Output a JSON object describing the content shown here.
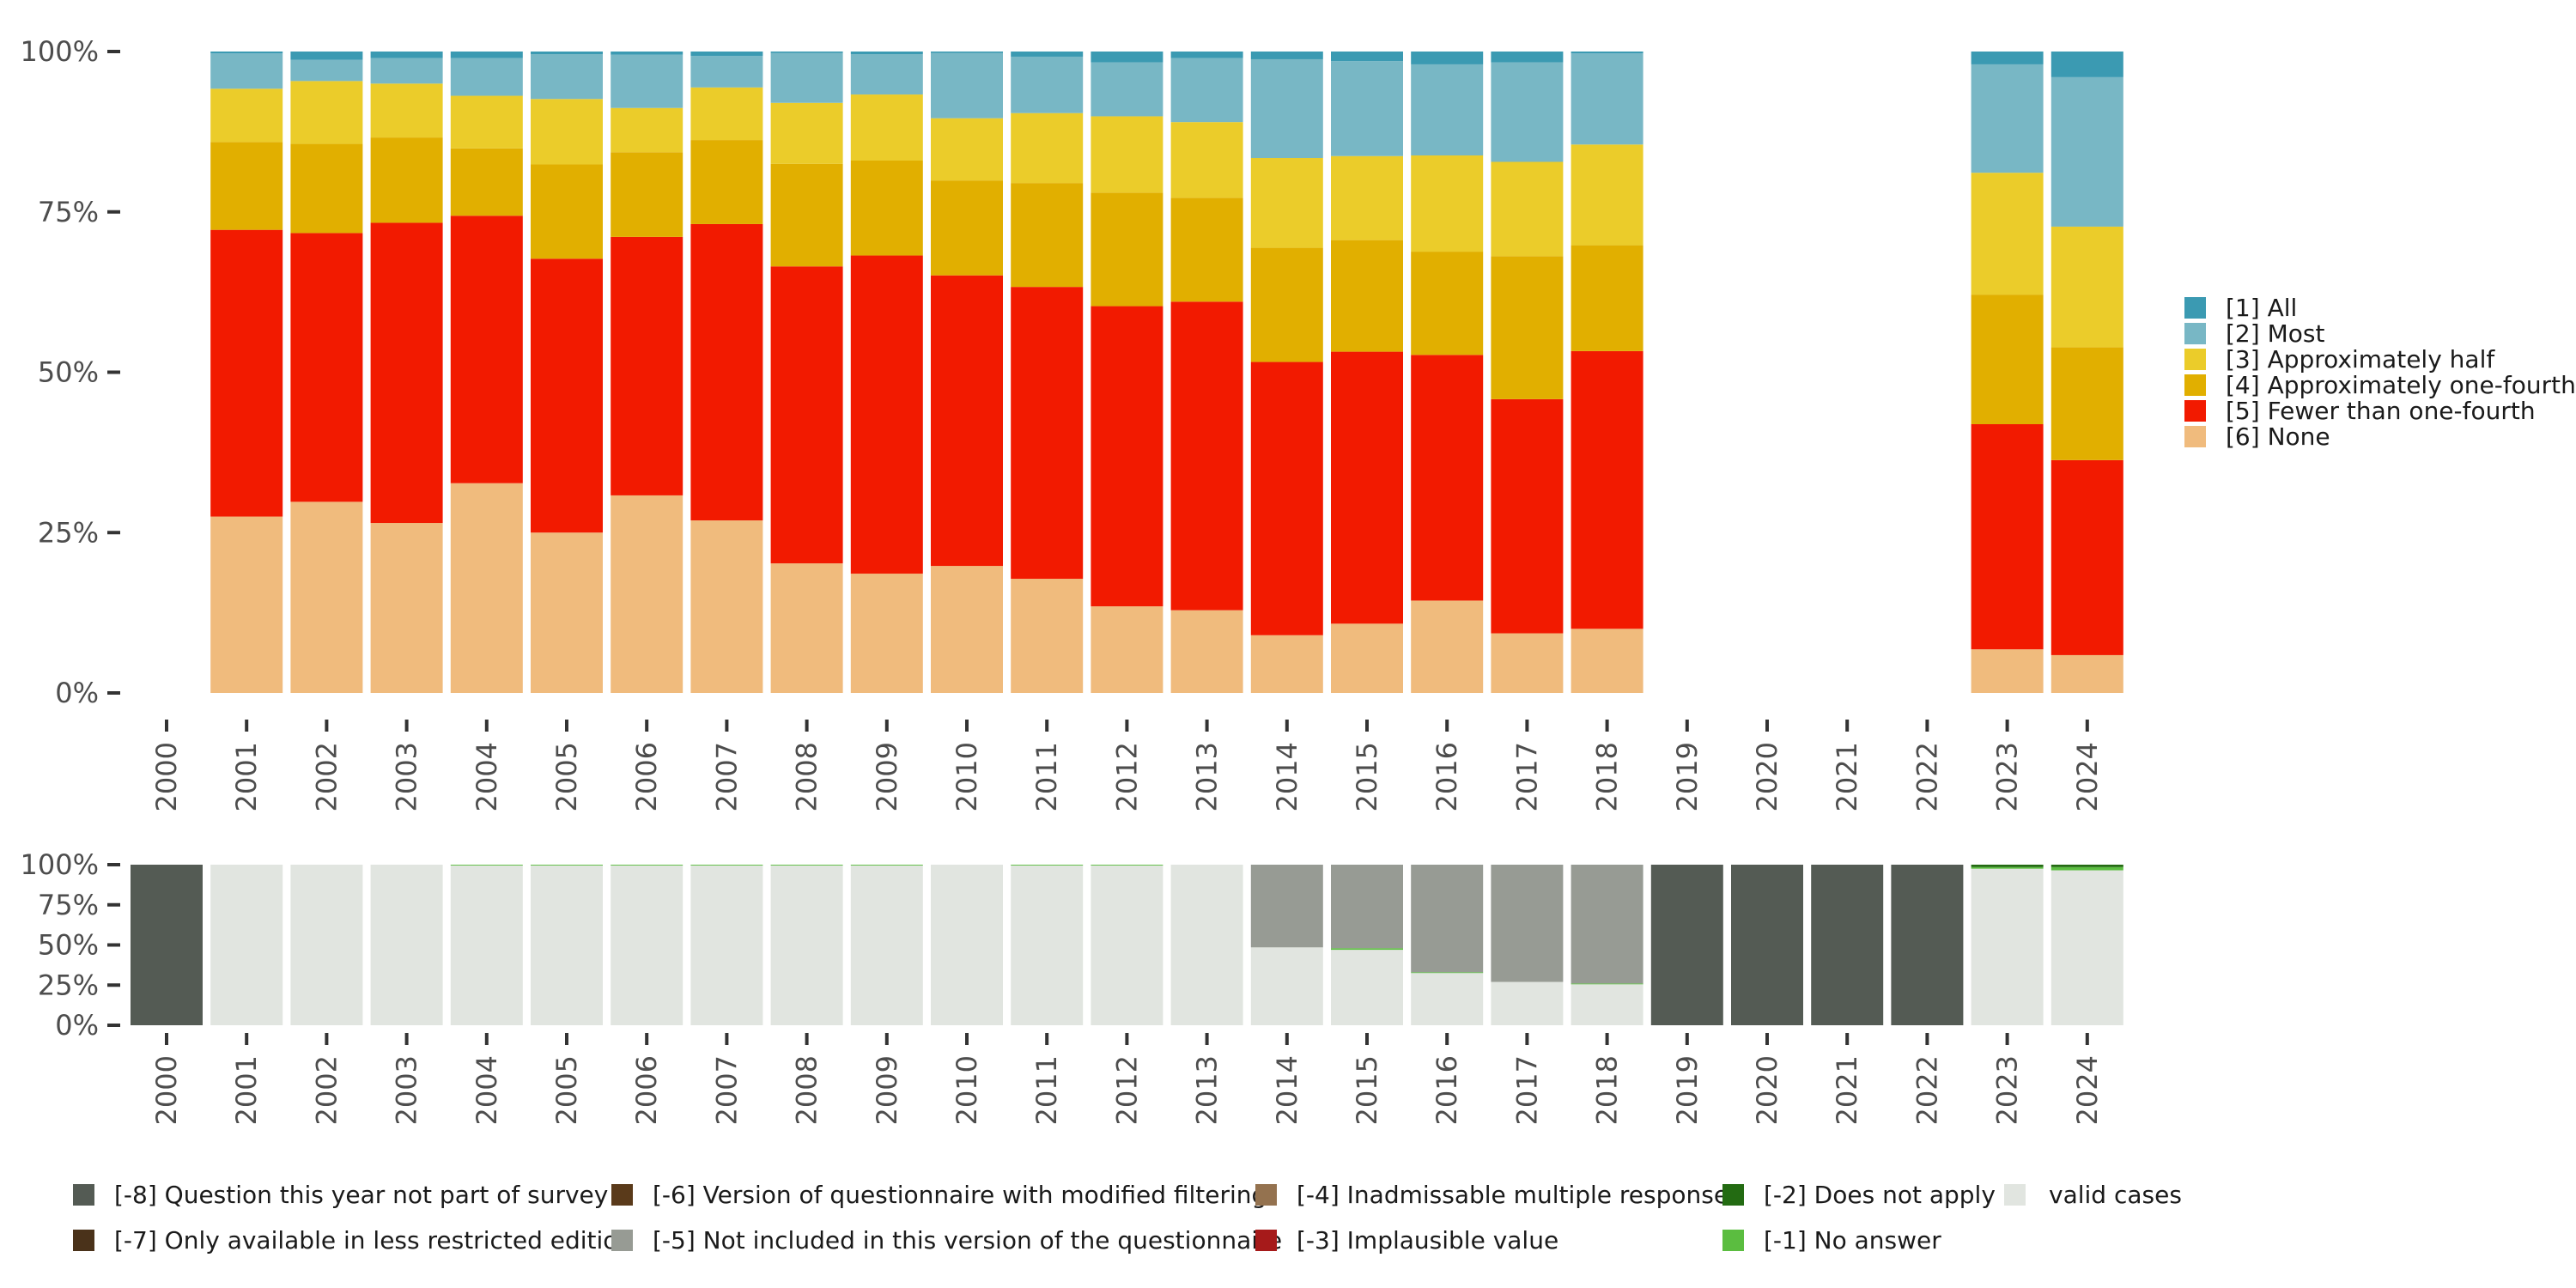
{
  "chart_data": [
    {
      "type": "bar",
      "stacked": true,
      "orientation": "vertical",
      "title": "",
      "xlabel": "",
      "ylabel": "",
      "ylim": [
        0,
        100
      ],
      "y_tick_labels": [
        "0%",
        "25%",
        "50%",
        "75%",
        "100%"
      ],
      "y_ticks": [
        0,
        25,
        50,
        75,
        100
      ],
      "categories": [
        "2000",
        "2001",
        "2002",
        "2003",
        "2004",
        "2005",
        "2006",
        "2007",
        "2008",
        "2009",
        "2010",
        "2011",
        "2012",
        "2013",
        "2014",
        "2015",
        "2016",
        "2017",
        "2018",
        "2019",
        "2020",
        "2021",
        "2022",
        "2023",
        "2024"
      ],
      "legend_position": "right",
      "series": [
        {
          "name": "[6] None",
          "color": "#F0BB7D",
          "values": [
            null,
            27.5,
            29.8,
            26.5,
            32.7,
            25.0,
            30.8,
            26.9,
            20.2,
            18.6,
            19.8,
            17.8,
            13.5,
            12.9,
            9.0,
            10.8,
            14.4,
            9.3,
            10.0,
            null,
            null,
            null,
            null,
            6.8,
            5.9
          ]
        },
        {
          "name": "[5] Fewer than one-fourth",
          "color": "#F21A00",
          "values": [
            null,
            44.7,
            41.9,
            46.8,
            41.7,
            42.7,
            40.3,
            46.2,
            46.3,
            49.6,
            45.3,
            45.5,
            46.8,
            48.1,
            42.6,
            42.4,
            38.3,
            36.5,
            43.3,
            null,
            null,
            null,
            null,
            35.1,
            30.4
          ]
        },
        {
          "name": "[4] Approximately one-fourth",
          "color": "#E1AF00",
          "values": [
            null,
            13.7,
            13.9,
            13.3,
            10.5,
            14.7,
            13.2,
            13.1,
            16.0,
            14.8,
            14.8,
            16.2,
            17.7,
            16.2,
            17.8,
            17.4,
            16.1,
            22.3,
            16.5,
            null,
            null,
            null,
            null,
            20.2,
            17.6
          ]
        },
        {
          "name": "[3] Approximately half",
          "color": "#EBCC2A",
          "values": [
            null,
            8.3,
            9.8,
            8.4,
            8.2,
            10.2,
            6.9,
            8.2,
            9.5,
            10.3,
            9.7,
            10.9,
            11.9,
            11.8,
            14.0,
            13.1,
            15.0,
            14.7,
            15.7,
            null,
            null,
            null,
            null,
            19.0,
            18.8
          ]
        },
        {
          "name": "[2] Most",
          "color": "#78B7C5",
          "values": [
            null,
            5.5,
            3.3,
            4.0,
            5.9,
            7.0,
            8.3,
            4.9,
            7.8,
            6.3,
            10.2,
            8.8,
            8.4,
            10.0,
            15.4,
            14.8,
            14.2,
            15.5,
            14.2,
            null,
            null,
            null,
            null,
            16.9,
            23.3
          ]
        },
        {
          "name": "[1] All",
          "color": "#3B9AB2",
          "values": [
            null,
            0.3,
            1.3,
            1.0,
            1.0,
            0.4,
            0.5,
            0.7,
            0.2,
            0.4,
            0.2,
            0.8,
            1.7,
            1.0,
            1.2,
            1.5,
            2.0,
            1.7,
            0.3,
            null,
            null,
            null,
            null,
            2.0,
            4.0
          ]
        }
      ],
      "legend": [
        {
          "label": "[1] All",
          "color": "#3B9AB2"
        },
        {
          "label": "[2] Most",
          "color": "#78B7C5"
        },
        {
          "label": "[3] Approximately half",
          "color": "#EBCC2A"
        },
        {
          "label": "[4] Approximately one-fourth",
          "color": "#E1AF00"
        },
        {
          "label": "[5] Fewer than one-fourth",
          "color": "#F21A00"
        },
        {
          "label": "[6] None",
          "color": "#F0BB7D"
        }
      ]
    },
    {
      "type": "bar",
      "stacked": true,
      "orientation": "vertical",
      "title": "",
      "xlabel": "",
      "ylabel": "",
      "ylim": [
        0,
        100
      ],
      "y_tick_labels": [
        "0%",
        "25%",
        "50%",
        "75%",
        "100%"
      ],
      "y_ticks": [
        0,
        25,
        50,
        75,
        100
      ],
      "categories": [
        "2000",
        "2001",
        "2002",
        "2003",
        "2004",
        "2005",
        "2006",
        "2007",
        "2008",
        "2009",
        "2010",
        "2011",
        "2012",
        "2013",
        "2014",
        "2015",
        "2016",
        "2017",
        "2018",
        "2019",
        "2020",
        "2021",
        "2022",
        "2023",
        "2024"
      ],
      "legend_position": "bottom",
      "series": [
        {
          "name": "valid cases",
          "color": "#E1E5E0",
          "values": [
            0,
            100,
            100,
            100,
            99.5,
            99.5,
            99.5,
            99.5,
            99.5,
            99.5,
            100,
            99.5,
            99.5,
            100,
            48.5,
            47.0,
            32.5,
            27.0,
            25.5,
            0,
            0,
            0,
            0,
            97.5,
            96.5
          ]
        },
        {
          "name": "[-1] No answer",
          "color": "#5BBD40",
          "values": [
            0,
            0,
            0,
            0,
            0.5,
            0.5,
            0.5,
            0.5,
            0.5,
            0.5,
            0,
            0.5,
            0.5,
            0,
            0,
            1.0,
            0.5,
            0,
            0.5,
            0,
            0,
            0,
            0,
            1.0,
            2.0
          ]
        },
        {
          "name": "[-2] Does not apply",
          "color": "#236B12",
          "values": [
            0,
            0,
            0,
            0,
            0,
            0,
            0,
            0,
            0,
            0,
            0,
            0,
            0,
            0,
            0,
            0,
            0,
            0,
            0,
            0,
            0,
            0,
            0,
            1.5,
            1.5
          ]
        },
        {
          "name": "[-3] Implausible value",
          "color": "#A61A1A",
          "values": [
            0,
            0,
            0,
            0,
            0,
            0,
            0,
            0,
            0,
            0,
            0,
            0,
            0,
            0,
            0,
            0,
            0,
            0,
            0,
            0,
            0,
            0,
            0,
            0,
            0
          ]
        },
        {
          "name": "[-4] Inadmissable multiple response",
          "color": "#94724F",
          "values": [
            0,
            0,
            0,
            0,
            0,
            0,
            0,
            0,
            0,
            0,
            0,
            0,
            0,
            0,
            0,
            0,
            0,
            0,
            0,
            0,
            0,
            0,
            0,
            0,
            0
          ]
        },
        {
          "name": "[-5] Not included in this version of the questionnaire",
          "color": "#979B94",
          "values": [
            0,
            0,
            0,
            0,
            0,
            0,
            0,
            0,
            0,
            0,
            0,
            0,
            0,
            0,
            51.5,
            52.0,
            67.0,
            73.0,
            74.0,
            0,
            0,
            0,
            0,
            0,
            0
          ]
        },
        {
          "name": "[-6] Version of questionnaire with modified filtering",
          "color": "#5A3A1A",
          "values": [
            0,
            0,
            0,
            0,
            0,
            0,
            0,
            0,
            0,
            0,
            0,
            0,
            0,
            0,
            0,
            0,
            0,
            0,
            0,
            0,
            0,
            0,
            0,
            0,
            0
          ]
        },
        {
          "name": "[-7] Only available in less restricted edition",
          "color": "#4A321A",
          "values": [
            0,
            0,
            0,
            0,
            0,
            0,
            0,
            0,
            0,
            0,
            0,
            0,
            0,
            0,
            0,
            0,
            0,
            0,
            0,
            0,
            0,
            0,
            0,
            0,
            0
          ]
        },
        {
          "name": "[-8] Question this year not part of survey",
          "color": "#545B54",
          "values": [
            100,
            0,
            0,
            0,
            0,
            0,
            0,
            0,
            0,
            0,
            0,
            0,
            0,
            0,
            0,
            0,
            0,
            0,
            0,
            100,
            100,
            100,
            100,
            0,
            0
          ]
        }
      ],
      "legend": [
        {
          "label": "[-8] Question this year not part of survey",
          "color": "#545B54"
        },
        {
          "label": "[-7] Only available in less restricted edition",
          "color": "#4A321A"
        },
        {
          "label": "[-6] Version of questionnaire with modified filtering",
          "color": "#5A3A1A"
        },
        {
          "label": "[-5] Not included in this version of the questionnaire",
          "color": "#979B94"
        },
        {
          "label": "[-4] Inadmissable multiple response",
          "color": "#94724F"
        },
        {
          "label": "[-3] Implausible value",
          "color": "#A61A1A"
        },
        {
          "label": "[-2] Does not apply",
          "color": "#236B12"
        },
        {
          "label": "[-1] No answer",
          "color": "#5BBD40"
        },
        {
          "label": "valid cases",
          "color": "#E1E5E0"
        }
      ]
    }
  ]
}
